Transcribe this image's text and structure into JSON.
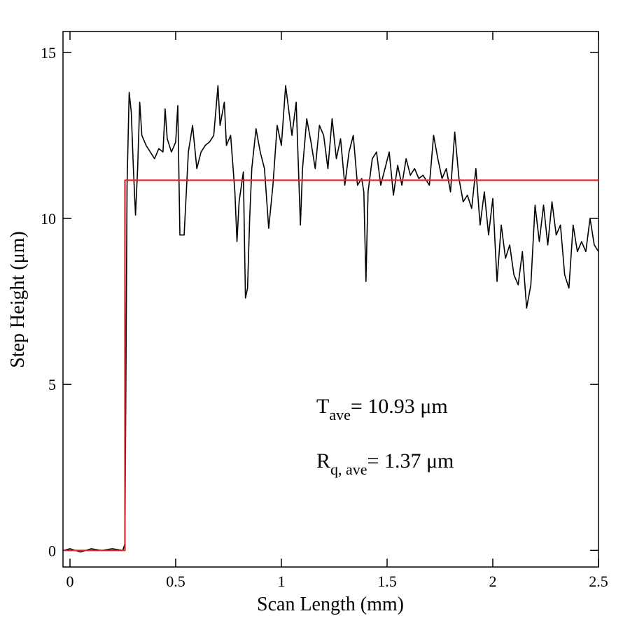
{
  "chart_data": {
    "type": "line",
    "xlabel": "Scan Length (mm)",
    "ylabel": "Step Height (μm)",
    "xlim": [
      -0.033,
      2.5
    ],
    "ylim": [
      -0.5,
      15.63
    ],
    "xticks": [
      0,
      0.5,
      1,
      1.5,
      2,
      2.5
    ],
    "yticks": [
      0,
      5,
      10,
      15
    ],
    "annotations": [
      {
        "text": "T",
        "sub": "ave",
        "rest": "= 10.93 μm"
      },
      {
        "text": "R",
        "sub": "q, ave",
        "rest": "= 1.37 μm"
      }
    ],
    "series": [
      {
        "color": "#000000",
        "x": [
          -0.03,
          0,
          0.05,
          0.1,
          0.15,
          0.2,
          0.25,
          0.26,
          0.27,
          0.28,
          0.29,
          0.3,
          0.31,
          0.32,
          0.33,
          0.34,
          0.36,
          0.38,
          0.4,
          0.42,
          0.44,
          0.45,
          0.46,
          0.48,
          0.5,
          0.51,
          0.52,
          0.54,
          0.56,
          0.58,
          0.6,
          0.62,
          0.64,
          0.66,
          0.68,
          0.7,
          0.71,
          0.73,
          0.74,
          0.76,
          0.78,
          0.79,
          0.8,
          0.82,
          0.83,
          0.84,
          0.85,
          0.86,
          0.88,
          0.9,
          0.92,
          0.94,
          0.96,
          0.98,
          1,
          1.02,
          1.03,
          1.05,
          1.07,
          1.09,
          1.1,
          1.12,
          1.14,
          1.16,
          1.18,
          1.2,
          1.22,
          1.24,
          1.26,
          1.28,
          1.3,
          1.32,
          1.34,
          1.36,
          1.38,
          1.39,
          1.4,
          1.41,
          1.43,
          1.45,
          1.47,
          1.49,
          1.51,
          1.53,
          1.55,
          1.57,
          1.59,
          1.61,
          1.63,
          1.65,
          1.67,
          1.7,
          1.72,
          1.74,
          1.76,
          1.78,
          1.8,
          1.82,
          1.84,
          1.86,
          1.88,
          1.9,
          1.92,
          1.94,
          1.96,
          1.98,
          2,
          2.02,
          2.04,
          2.06,
          2.08,
          2.1,
          2.12,
          2.14,
          2.16,
          2.18,
          2.2,
          2.22,
          2.24,
          2.26,
          2.28,
          2.3,
          2.32,
          2.34,
          2.36,
          2.38,
          2.4,
          2.42,
          2.44,
          2.46,
          2.48,
          2.5
        ],
        "values": [
          0,
          0.05,
          -0.05,
          0.05,
          0,
          0.05,
          0,
          0.2,
          11,
          13.8,
          13.2,
          11.5,
          10.1,
          11.5,
          13.5,
          12.5,
          12.2,
          12,
          11.8,
          12.1,
          12,
          13.3,
          12.4,
          12,
          12.3,
          13.4,
          9.5,
          9.5,
          12,
          12.8,
          11.5,
          12,
          12.2,
          12.3,
          12.5,
          14,
          12.8,
          13.5,
          12.2,
          12.5,
          10.8,
          9.3,
          10.5,
          11.4,
          7.6,
          7.9,
          10,
          11.5,
          12.7,
          12,
          11.5,
          9.7,
          11,
          12.8,
          12.2,
          14,
          13.5,
          12.5,
          13.5,
          9.8,
          11.5,
          13,
          12.3,
          11.5,
          12.8,
          12.5,
          11.5,
          13,
          11.8,
          12.4,
          11,
          12,
          12.5,
          11,
          11.2,
          10.8,
          8.1,
          10.8,
          11.8,
          12,
          11,
          11.5,
          12,
          10.7,
          11.6,
          11,
          11.8,
          11.3,
          11.5,
          11.2,
          11.3,
          11,
          12.5,
          11.8,
          11.2,
          11.5,
          10.8,
          12.6,
          11.2,
          10.5,
          10.7,
          10.3,
          11.5,
          9.8,
          10.8,
          9.5,
          10.6,
          8.1,
          9.8,
          8.8,
          9.2,
          8.3,
          8,
          9,
          7.3,
          8,
          10.4,
          9.3,
          10.4,
          9.2,
          10.5,
          9.5,
          9.8,
          8.3,
          7.9,
          9.8,
          9,
          9.3,
          9,
          10,
          9.2,
          9
        ]
      },
      {
        "color": "#e0282e",
        "x": [
          -0.03,
          0.26,
          0.26,
          2.5
        ],
        "values": [
          0,
          0,
          11.15,
          11.15
        ]
      }
    ]
  }
}
